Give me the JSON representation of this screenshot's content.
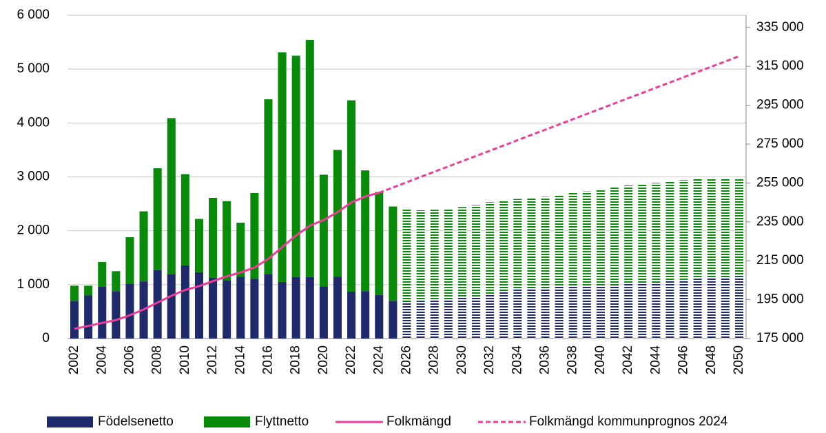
{
  "chart_data": {
    "type": "bar",
    "stacked": true,
    "categories": [
      "2002",
      null,
      "2004",
      null,
      "2006",
      null,
      "2008",
      null,
      "2010",
      null,
      "2012",
      null,
      "2014",
      null,
      "2016",
      null,
      "2018",
      null,
      "2020",
      null,
      "2022",
      null,
      "2024",
      null,
      "2026",
      null,
      "2028",
      null,
      "2030",
      null,
      "2032",
      null,
      "2034",
      null,
      "2036",
      null,
      "2038",
      null,
      "2040",
      null,
      "2042",
      null,
      "2044",
      null,
      "2046",
      null,
      "2048",
      null,
      "2050"
    ],
    "hatch_from_index": 23,
    "series": [
      {
        "name": "Födelsenetto",
        "color": "#1f2a6b",
        "values": [
          700,
          800,
          960,
          880,
          1020,
          1060,
          1270,
          1190,
          1360,
          1230,
          1130,
          1080,
          1150,
          1110,
          1200,
          1050,
          1140,
          1140,
          970,
          1150,
          870,
          880,
          810,
          700,
          690,
          700,
          720,
          740,
          760,
          790,
          830,
          880,
          920,
          940,
          950,
          960,
          970,
          980,
          990,
          1000,
          1010,
          1030,
          1050,
          1070,
          1090,
          1110,
          1130,
          1150,
          1160
        ]
      },
      {
        "name": "Flyttnetto",
        "color": "#0a8a0a",
        "values": [
          280,
          180,
          460,
          370,
          860,
          1300,
          1890,
          2900,
          1690,
          990,
          1480,
          1470,
          1000,
          1590,
          3240,
          4260,
          4110,
          4400,
          2070,
          2350,
          3550,
          2240,
          1910,
          1750,
          1730,
          1680,
          1670,
          1660,
          1680,
          1690,
          1700,
          1680,
          1670,
          1660,
          1680,
          1700,
          1730,
          1750,
          1770,
          1800,
          1830,
          1840,
          1840,
          1850,
          1850,
          1850,
          1840,
          1820,
          1800
        ]
      },
      {
        "name": "Folkmängd",
        "type": "line",
        "axis": "y2",
        "color": "#ec3d97",
        "values": [
          180000,
          181500,
          183000,
          184500,
          187000,
          190000,
          193500,
          197000,
          200000,
          202000,
          204500,
          207000,
          209000,
          211500,
          216000,
          222000,
          228000,
          233000,
          236000,
          240000,
          245000,
          248000,
          250000,
          null,
          null,
          null,
          null,
          null,
          null,
          null,
          null,
          null,
          null,
          null,
          null,
          null,
          null,
          null,
          null,
          null,
          null,
          null,
          null,
          null,
          null,
          null,
          null,
          null,
          null
        ]
      },
      {
        "name": "Folkmängd kommunprognos 2024",
        "type": "line",
        "dashed": true,
        "axis": "y2",
        "color": "#ec3d97",
        "values": [
          null,
          null,
          null,
          null,
          null,
          null,
          null,
          null,
          null,
          null,
          null,
          null,
          null,
          null,
          null,
          null,
          null,
          null,
          null,
          null,
          null,
          null,
          250000,
          252700,
          255400,
          258100,
          260800,
          263500,
          266200,
          268900,
          271600,
          274300,
          277000,
          279700,
          282400,
          285100,
          287800,
          290500,
          293200,
          295900,
          298600,
          301300,
          304000,
          306700,
          309400,
          312100,
          314800,
          317500,
          320200
        ]
      }
    ],
    "ylim": [
      0,
      6000
    ],
    "yticks": [
      0,
      {
        "value": 1000,
        "label": "1 000"
      },
      {
        "value": 2000,
        "label": "2 000"
      },
      {
        "value": 3000,
        "label": "3 000"
      },
      {
        "value": 4000,
        "label": "4 000"
      },
      {
        "value": 5000,
        "label": "5 000"
      },
      {
        "value": 6000,
        "label": "6 000"
      }
    ],
    "y2lim": [
      175000,
      341300
    ],
    "y2ticks": [
      {
        "value": 175000,
        "label": "175 000"
      },
      {
        "value": 195000,
        "label": "195 000"
      },
      {
        "value": 215000,
        "label": "215 000"
      },
      {
        "value": 235000,
        "label": "235 000"
      },
      {
        "value": 255000,
        "label": "255 000"
      },
      {
        "value": 275000,
        "label": "275 000"
      },
      {
        "value": 295000,
        "label": "295 000"
      },
      {
        "value": 315000,
        "label": "315 000"
      },
      {
        "value": 335000,
        "label": "335 000"
      }
    ],
    "grid": true,
    "legend": "bottom"
  }
}
